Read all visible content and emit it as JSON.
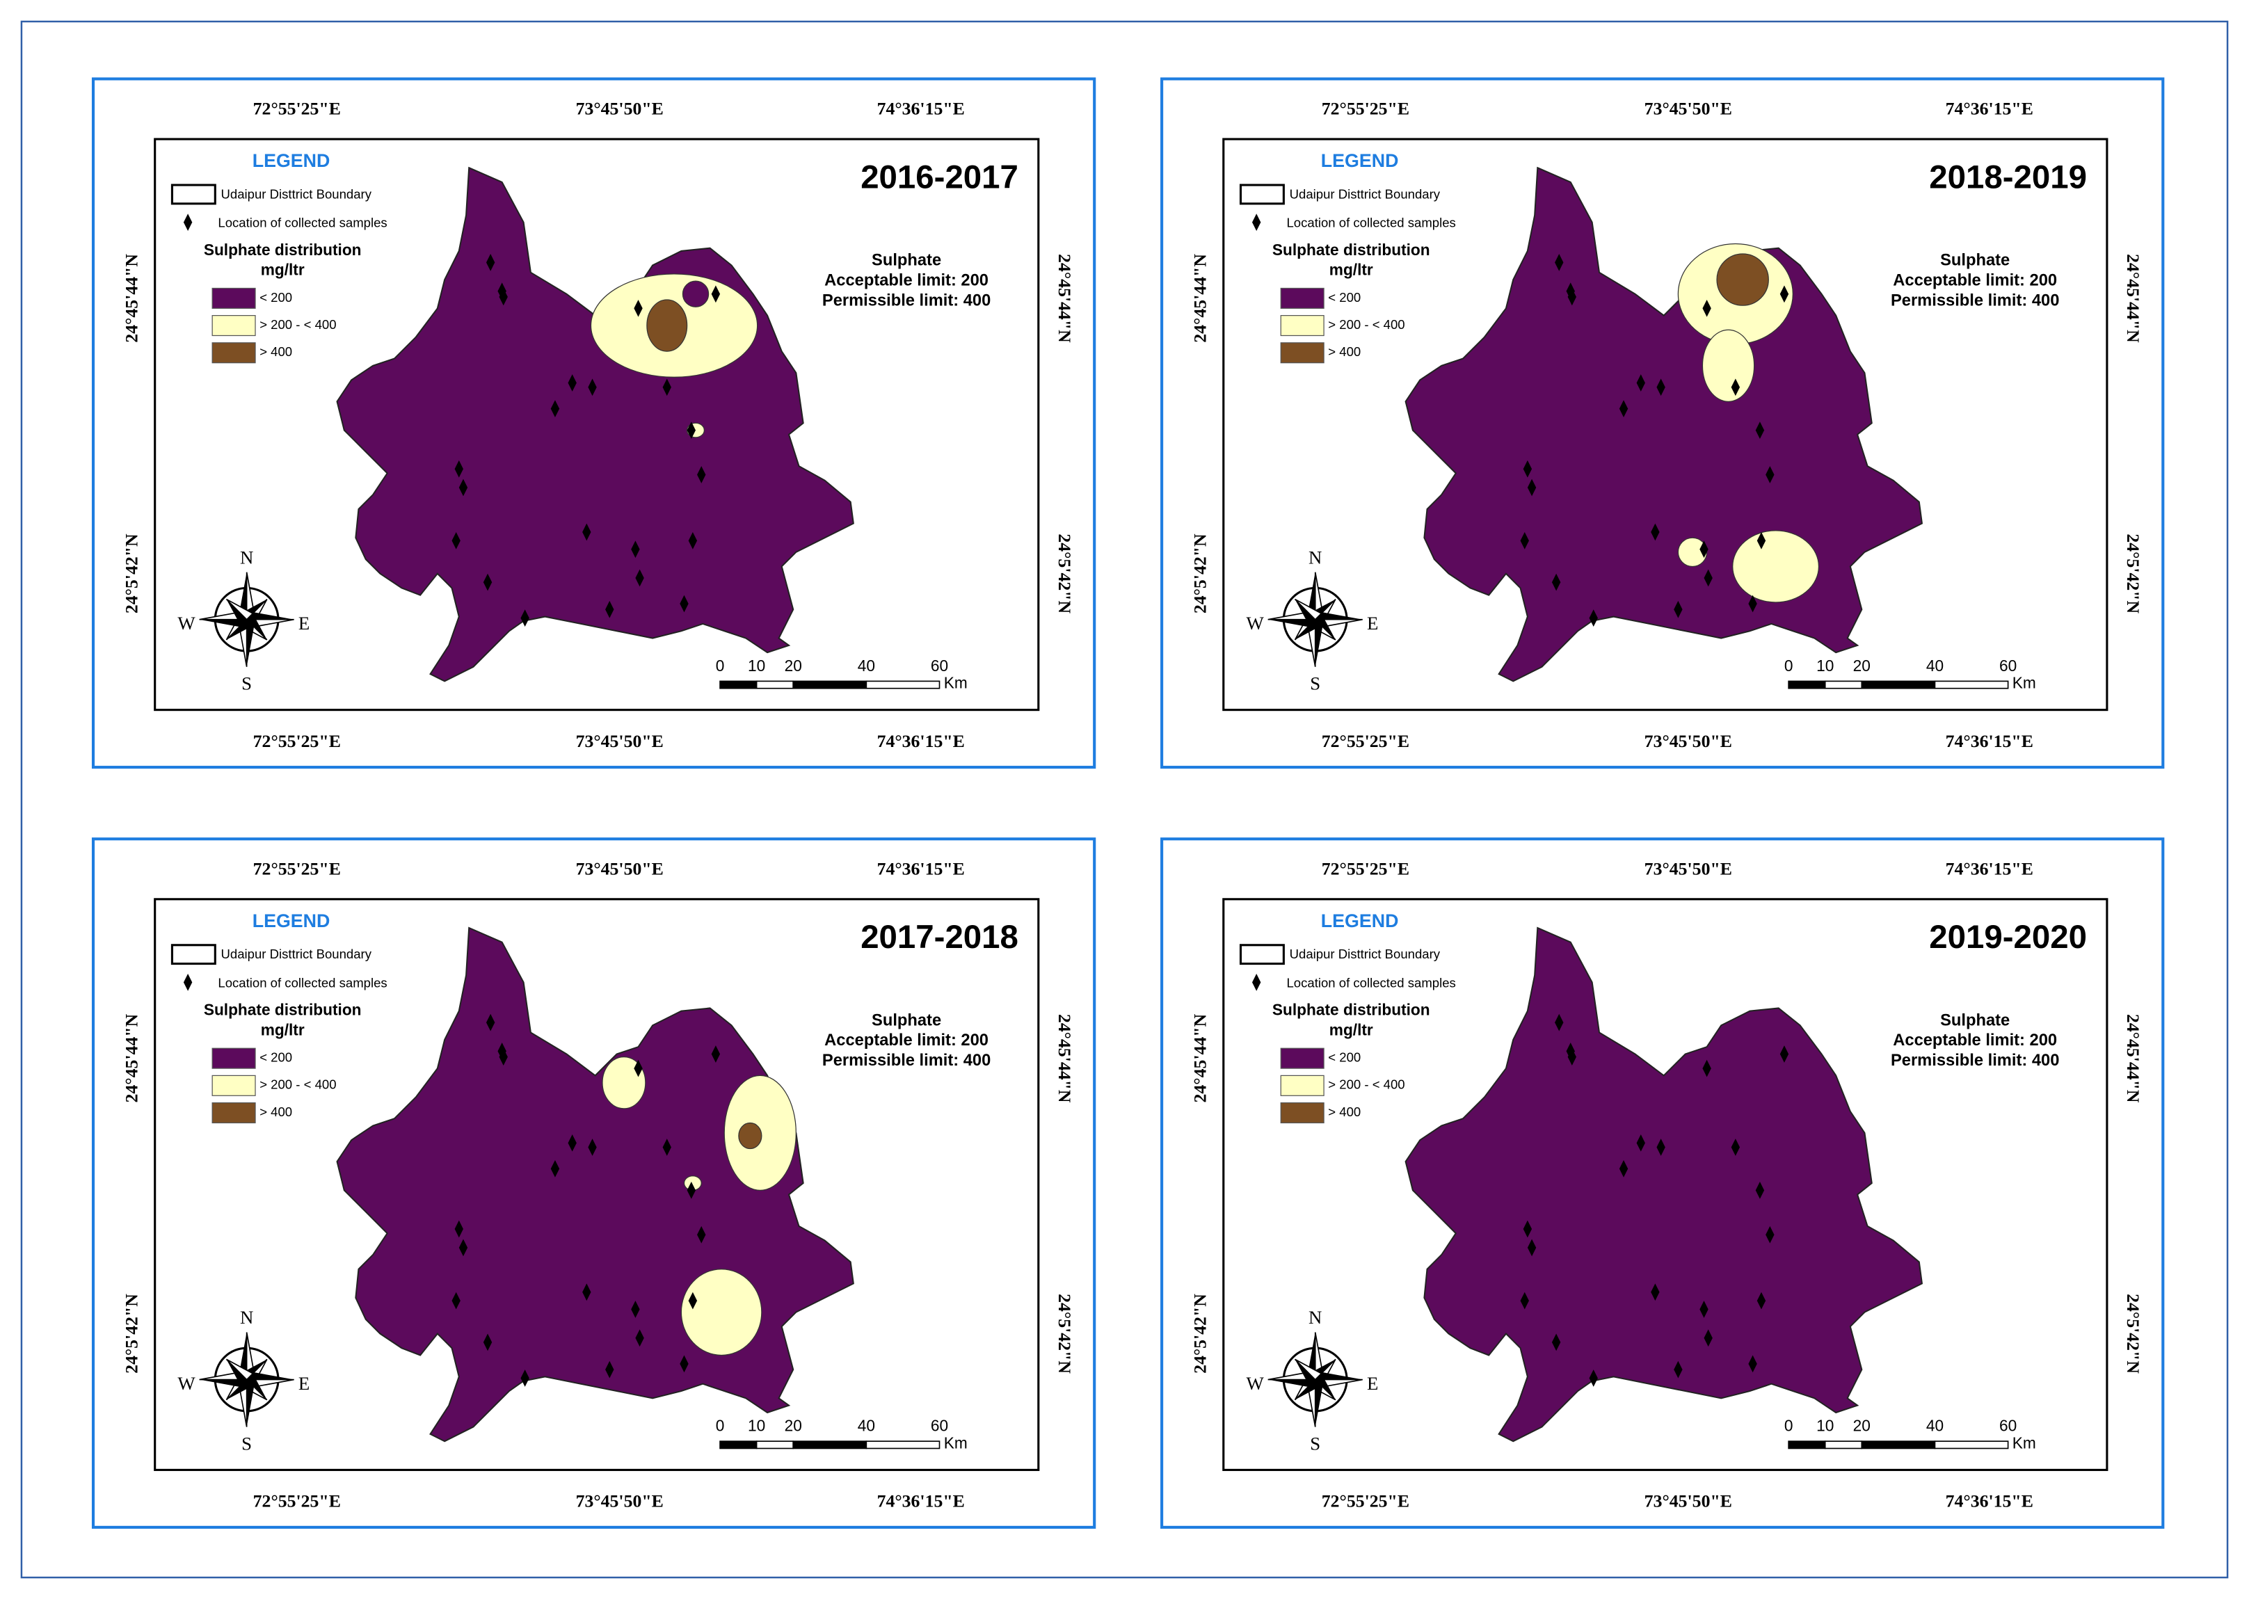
{
  "panels": [
    {
      "title": "2016-2017",
      "top_lon_labels": [
        "72°55'25\"E",
        "73°45'50\"E",
        "74°36'15\"E"
      ],
      "bottom_lon_labels": [
        "72°55'25\"E",
        "73°45'50\"E",
        "74°36'15\"E"
      ],
      "left_lat_labels": [
        "24°45'44\"N",
        "24°5'42\"N"
      ],
      "right_lat_labels": [
        "24°45'44\"N",
        "24°5'42\"N"
      ],
      "legend_title": "LEGEND",
      "legend_items": [
        "Udaipur Disttrict Boundary",
        "Location of collected samples"
      ],
      "distribution_title": "Sulphate distribution",
      "distribution_unit": "mg/ltr",
      "classes": [
        {
          "label": "< 200",
          "color": "#5c0a5c"
        },
        {
          "label": "> 200 - < 400",
          "color": "#ffffc4"
        },
        {
          "label": "> 400",
          "color": "#7d4f23"
        }
      ],
      "parameter": "Sulphate",
      "acceptable": "Acceptable limit: 200",
      "permissible": "Permissible limit: 400",
      "scale_labels": [
        0,
        10,
        20,
        40,
        60
      ],
      "scale_unit": "Km",
      "compass": [
        "N",
        "S",
        "W",
        "E"
      ]
    },
    {
      "title": "2018-2019",
      "top_lon_labels": [
        "72°55'25\"E",
        "73°45'50\"E",
        "74°36'15\"E"
      ],
      "bottom_lon_labels": [
        "72°55'25\"E",
        "73°45'50\"E",
        "74°36'15\"E"
      ],
      "left_lat_labels": [
        "24°45'44\"N",
        "24°5'42\"N"
      ],
      "right_lat_labels": [
        "24°45'44\"N",
        "24°5'42\"N"
      ],
      "legend_title": "LEGEND",
      "legend_items": [
        "Udaipur Disttrict Boundary",
        "Location of collected samples"
      ],
      "distribution_title": "Sulphate distribution",
      "distribution_unit": "mg/ltr",
      "classes": [
        {
          "label": "< 200",
          "color": "#5c0a5c"
        },
        {
          "label": "> 200 - < 400",
          "color": "#ffffc4"
        },
        {
          "label": "> 400",
          "color": "#7d4f23"
        }
      ],
      "parameter": "Sulphate",
      "acceptable": "Acceptable limit: 200",
      "permissible": "Permissible limit: 400",
      "scale_labels": [
        0,
        10,
        20,
        40,
        60
      ],
      "scale_unit": "Km",
      "compass": [
        "N",
        "S",
        "W",
        "E"
      ]
    },
    {
      "title": "2017-2018",
      "top_lon_labels": [
        "72°55'25\"E",
        "73°45'50\"E",
        "74°36'15\"E"
      ],
      "bottom_lon_labels": [
        "72°55'25\"E",
        "73°45'50\"E",
        "74°36'15\"E"
      ],
      "left_lat_labels": [
        "24°45'44\"N",
        "24°5'42\"N"
      ],
      "right_lat_labels": [
        "24°45'44\"N",
        "24°5'42\"N"
      ],
      "legend_title": "LEGEND",
      "legend_items": [
        "Udaipur Disttrict Boundary",
        "Location of collected samples"
      ],
      "distribution_title": "Sulphate distribution",
      "distribution_unit": "mg/ltr",
      "classes": [
        {
          "label": "< 200",
          "color": "#5c0a5c"
        },
        {
          "label": "> 200 - < 400",
          "color": "#ffffc4"
        },
        {
          "label": "> 400",
          "color": "#7d4f23"
        }
      ],
      "parameter": "Sulphate",
      "acceptable": "Acceptable limit: 200",
      "permissible": "Permissible limit: 400",
      "scale_labels": [
        0,
        10,
        20,
        40,
        60
      ],
      "scale_unit": "Km",
      "compass": [
        "N",
        "S",
        "W",
        "E"
      ]
    },
    {
      "title": "2019-2020",
      "top_lon_labels": [
        "72°55'25\"E",
        "73°45'50\"E",
        "74°36'15\"E"
      ],
      "bottom_lon_labels": [
        "72°55'25\"E",
        "73°45'50\"E",
        "74°36'15\"E"
      ],
      "left_lat_labels": [
        "24°45'44\"N",
        "24°5'42\"N"
      ],
      "right_lat_labels": [
        "24°45'44\"N",
        "24°5'42\"N"
      ],
      "legend_title": "LEGEND",
      "legend_items": [
        "Udaipur Disttrict Boundary",
        "Location of collected samples"
      ],
      "distribution_title": "Sulphate distribution",
      "distribution_unit": "mg/ltr",
      "classes": [
        {
          "label": "< 200",
          "color": "#5c0a5c"
        },
        {
          "label": "> 200 - < 400",
          "color": "#ffffc4"
        },
        {
          "label": "> 400",
          "color": "#7d4f23"
        }
      ],
      "parameter": "Sulphate",
      "acceptable": "Acceptable limit: 200",
      "permissible": "Permissible limit: 400",
      "scale_labels": [
        0,
        10,
        20,
        40,
        60
      ],
      "scale_unit": "Km",
      "compass": [
        "N",
        "S",
        "W",
        "E"
      ]
    }
  ]
}
